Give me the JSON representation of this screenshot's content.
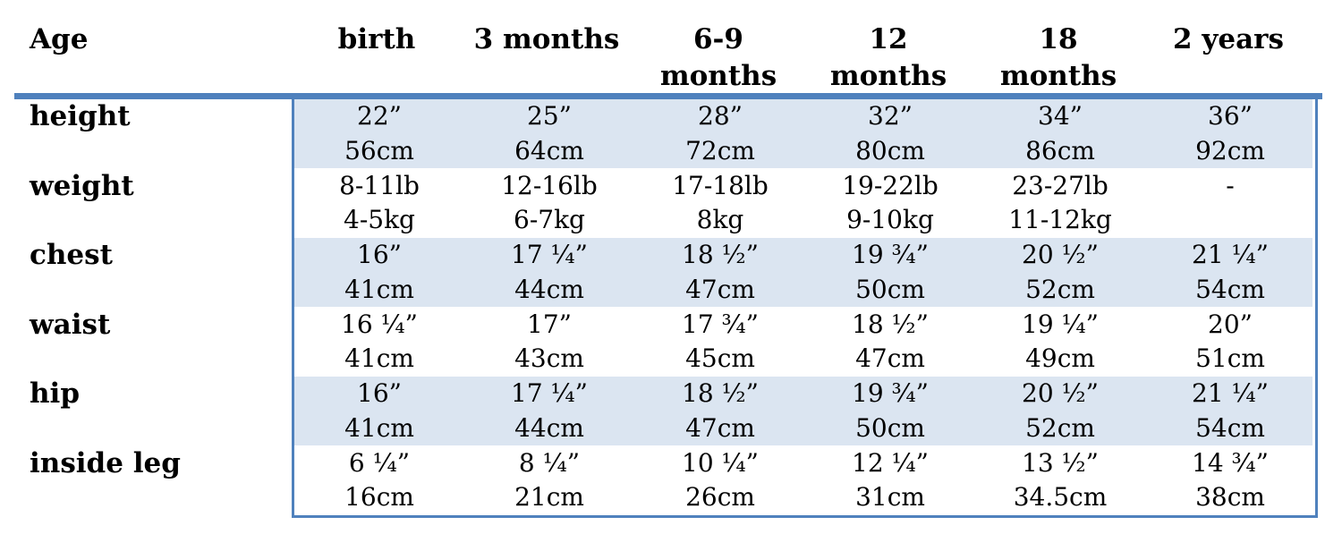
{
  "header": {
    "age_label": "Age",
    "columns": [
      "birth",
      "3 months",
      "6-9 months",
      "12 months",
      "18 months",
      "2 years"
    ]
  },
  "rows": [
    {
      "label": "height",
      "values": [
        [
          "22”",
          "56cm"
        ],
        [
          "25”",
          "64cm"
        ],
        [
          "28”",
          "72cm"
        ],
        [
          "32”",
          "80cm"
        ],
        [
          "34”",
          "86cm"
        ],
        [
          "36”",
          "92cm"
        ]
      ]
    },
    {
      "label": "weight",
      "values": [
        [
          "8-11lb",
          "4-5kg"
        ],
        [
          "12-16lb",
          "6-7kg"
        ],
        [
          "17-18lb",
          "8kg"
        ],
        [
          "19-22lb",
          "9-10kg"
        ],
        [
          "23-27lb",
          "11-12kg"
        ],
        [
          "-",
          ""
        ]
      ]
    },
    {
      "label": "chest",
      "values": [
        [
          "16”",
          "41cm"
        ],
        [
          "17 ¼”",
          "44cm"
        ],
        [
          "18 ½”",
          "47cm"
        ],
        [
          "19 ¾”",
          "50cm"
        ],
        [
          "20 ½”",
          "52cm"
        ],
        [
          "21 ¼”",
          "54cm"
        ]
      ]
    },
    {
      "label": "waist",
      "values": [
        [
          "16 ¼”",
          "41cm"
        ],
        [
          "17”",
          "43cm"
        ],
        [
          "17 ¾”",
          "45cm"
        ],
        [
          "18 ½”",
          "47cm"
        ],
        [
          "19 ¼”",
          "49cm"
        ],
        [
          "20”",
          "51cm"
        ]
      ]
    },
    {
      "label": "hip",
      "values": [
        [
          "16”",
          "41cm"
        ],
        [
          "17 ¼”",
          "44cm"
        ],
        [
          "18 ½”",
          "47cm"
        ],
        [
          "19 ¾”",
          "50cm"
        ],
        [
          "20 ½”",
          "52cm"
        ],
        [
          "21 ¼”",
          "54cm"
        ]
      ]
    },
    {
      "label": "inside leg",
      "values": [
        [
          "6 ¼”",
          "16cm"
        ],
        [
          "8 ¼”",
          "21cm"
        ],
        [
          "10 ¼”",
          "26cm"
        ],
        [
          "12 ¼”",
          "31cm"
        ],
        [
          "13 ½”",
          "34.5cm"
        ],
        [
          "14 ¾”",
          "38cm"
        ]
      ]
    }
  ],
  "colors": {
    "rule": "#4f81bd",
    "shade": "#dbe5f1"
  }
}
